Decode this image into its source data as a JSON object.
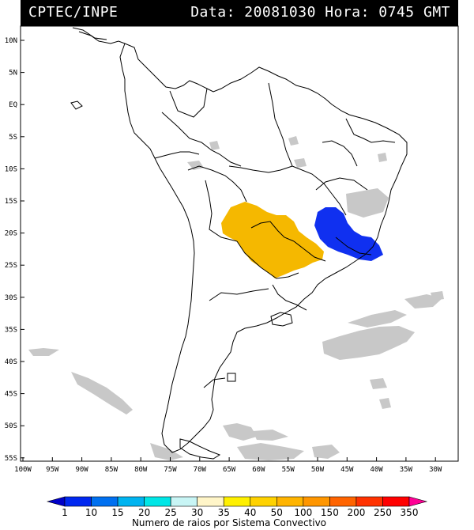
{
  "header": {
    "source": "CPTEC/INPE",
    "datetime": "Data: 20081030 Hora: 0745 GMT"
  },
  "map": {
    "lat_ticks": [
      "10N",
      "5N",
      "EQ",
      "5S",
      "10S",
      "15S",
      "20S",
      "25S",
      "30S",
      "35S",
      "40S",
      "45S",
      "50S",
      "55S"
    ],
    "lon_ticks": [
      "100W",
      "95W",
      "90W",
      "85W",
      "80W",
      "75W",
      "70W",
      "65W",
      "60W",
      "55W",
      "50W",
      "45W",
      "40W",
      "35W",
      "30W"
    ],
    "colors": {
      "cloud": "#c8c8c8",
      "orange_system": "#f5b800",
      "blue_system": "#1030f0"
    }
  },
  "legend": {
    "title": "Numero de raios por Sistema Convectivo",
    "labels": [
      "1",
      "10",
      "15",
      "20",
      "25",
      "30",
      "35",
      "40",
      "50",
      "100",
      "150",
      "200",
      "250",
      "350"
    ],
    "colors": [
      "#0000c8",
      "#0028f0",
      "#0070f0",
      "#00b4f0",
      "#00e6e6",
      "#c8f5f5",
      "#fff5c8",
      "#fff000",
      "#ffd200",
      "#ffb400",
      "#ff9600",
      "#ff6400",
      "#ff3200",
      "#ff0000",
      "#ff0096"
    ]
  }
}
